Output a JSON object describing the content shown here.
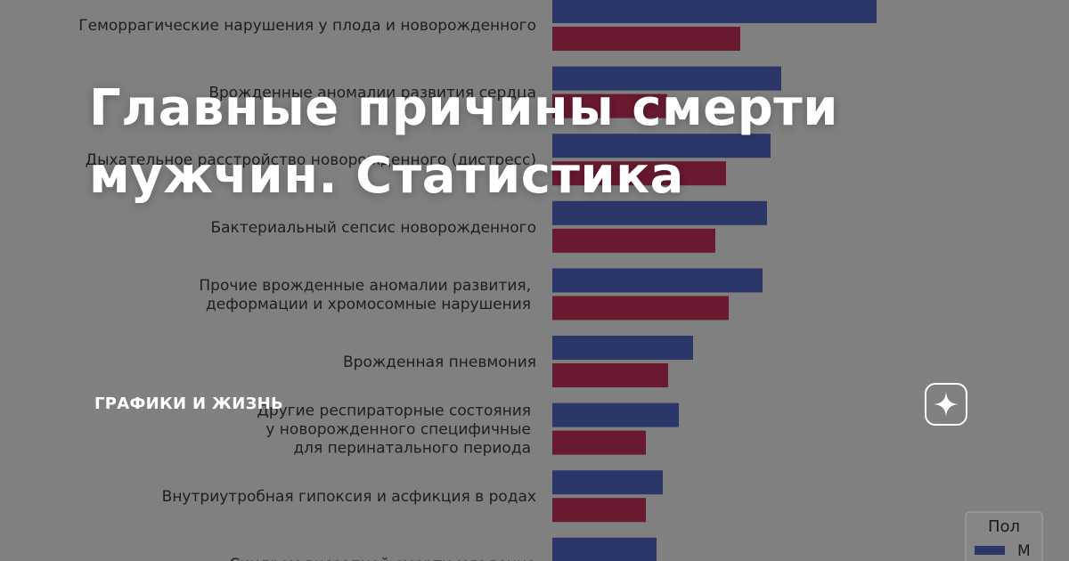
{
  "article": {
    "title_line1": "Главные причины смерти",
    "title_line2": "мужчин. Статистика",
    "channel": "ГРАФИКИ И ЖИЗНЬ",
    "zen_icon": "zen-star-icon"
  },
  "chart_data": {
    "type": "bar",
    "orientation": "horizontal",
    "categories": [
      [
        "Геморрагические нарушения у плода и новорожденного"
      ],
      [
        "Врожденные аномалии развития сердца"
      ],
      [
        "Дыхательное расстройство новорожденного (дистресс)"
      ],
      [
        "Бактериальный сепсис новорожденного"
      ],
      [
        "Прочие врожденные аномалии развития,",
        "деформации и хромосомные нарушения"
      ],
      [
        "Врожденная пневмония"
      ],
      [
        "Другие респираторные состояния",
        "у новорожденного специфичные",
        "для перинатального периода"
      ],
      [
        "Внутриутробная гипоксия и асфикция в родах"
      ],
      [
        "Синдром внезапной смерти младенца"
      ]
    ],
    "series": [
      {
        "name": "М",
        "color": "#2b3768",
        "values": [
          364,
          257,
          245,
          241,
          236,
          158,
          142,
          124,
          117
        ]
      },
      {
        "name": "",
        "color": "#6a1a2e",
        "values": [
          211,
          129,
          195,
          183,
          198,
          130,
          105,
          105,
          0
        ]
      }
    ],
    "legend": {
      "title": "Пол",
      "position": "bottom-right",
      "entries": [
        "М"
      ]
    }
  }
}
